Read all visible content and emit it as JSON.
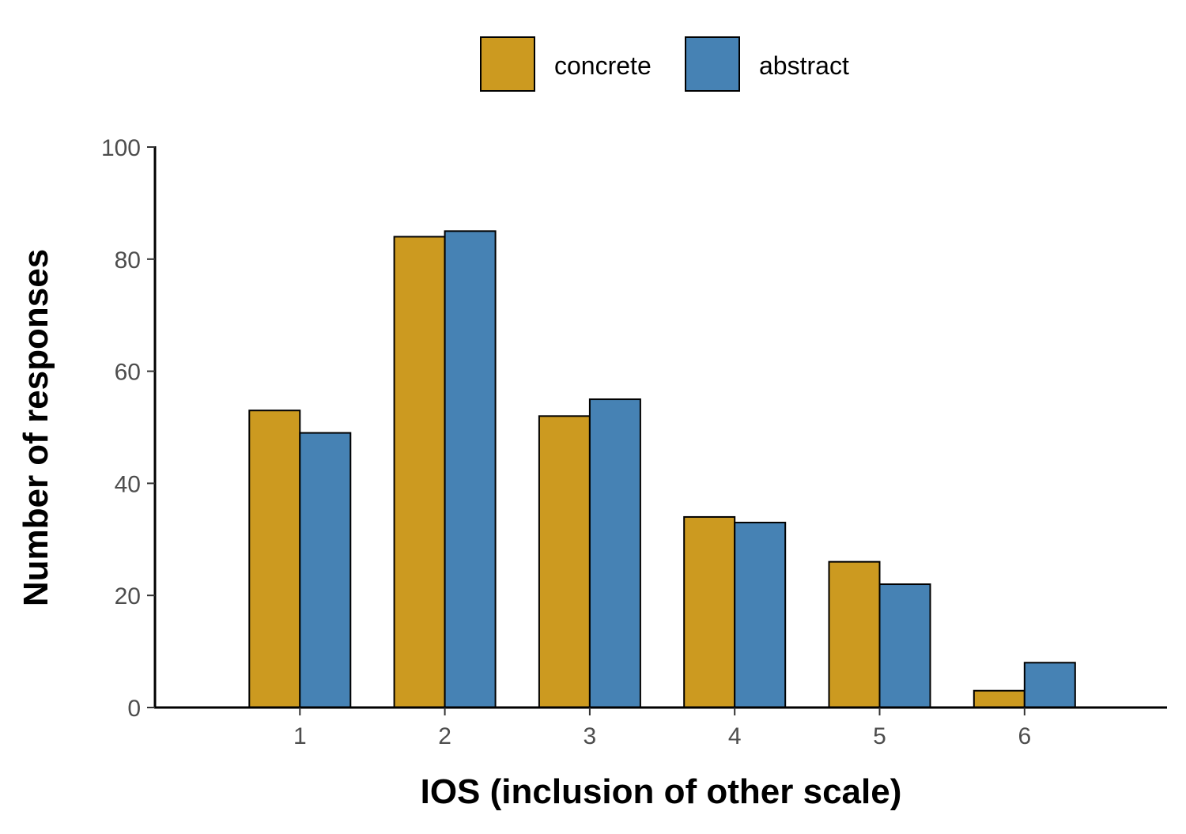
{
  "chart_data": {
    "type": "bar",
    "title": "",
    "xlabel": "IOS (inclusion of other scale)",
    "ylabel": "Number of responses",
    "categories": [
      "1",
      "2",
      "3",
      "4",
      "5",
      "6"
    ],
    "series": [
      {
        "name": "concrete",
        "color": "#CC9A20",
        "values": [
          53,
          84,
          52,
          34,
          26,
          3
        ]
      },
      {
        "name": "abstract",
        "color": "#4682B4",
        "values": [
          49,
          85,
          55,
          33,
          22,
          8
        ]
      }
    ],
    "xlim": [
      0,
      7
    ],
    "ylim": [
      0,
      100
    ],
    "yticks": [
      0,
      20,
      40,
      60,
      80,
      100
    ],
    "grid": false,
    "legend_position": "top"
  }
}
